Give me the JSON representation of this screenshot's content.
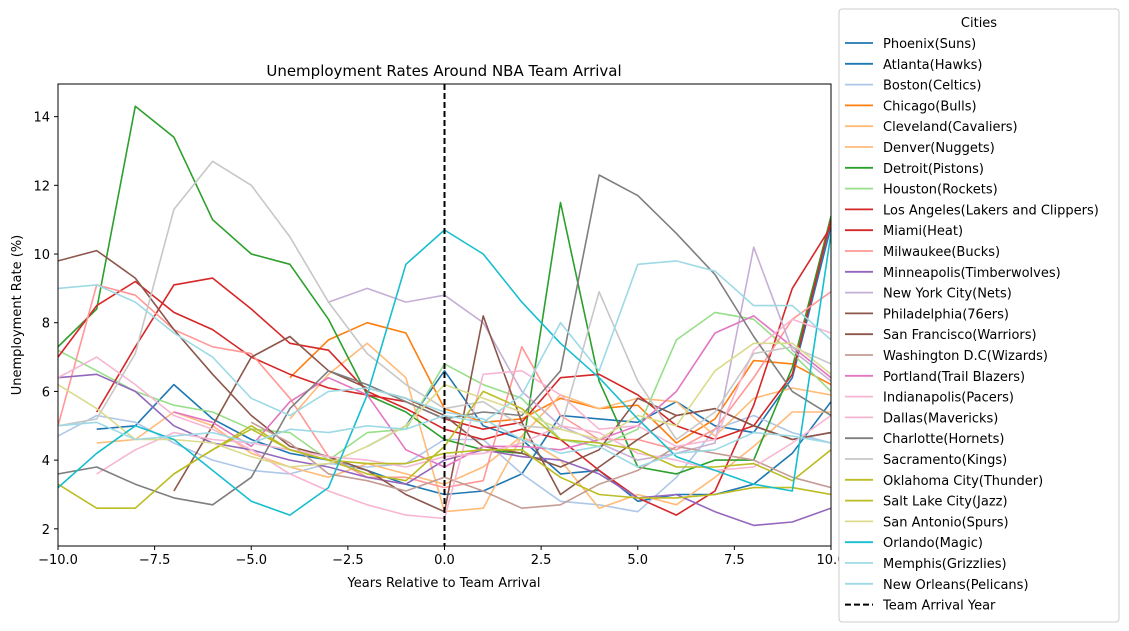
{
  "chart_data": {
    "type": "line",
    "title": "Unemployment Rates Around NBA Team Arrival",
    "xlabel": "Years Relative to Team Arrival",
    "ylabel": "Unemployment Rate (%)",
    "xlim": [
      -10,
      10
    ],
    "ylim": [
      1.5,
      14.95
    ],
    "xticks": [
      -10.0,
      -7.5,
      -5.0,
      -2.5,
      0.0,
      2.5,
      5.0,
      7.5,
      10.0
    ],
    "xtick_labels": [
      "−10.0",
      "−7.5",
      "−5.0",
      "−2.5",
      "0.0",
      "2.5",
      "5.0",
      "7.5",
      "10.0"
    ],
    "yticks": [
      2,
      4,
      6,
      8,
      10,
      12,
      14
    ],
    "ytick_labels": [
      "2",
      "4",
      "6",
      "8",
      "10",
      "12",
      "14"
    ],
    "grid": false,
    "legend": {
      "title": "Cities",
      "placement": "outside-right"
    },
    "reference_line": {
      "x": 0,
      "name": "Team Arrival Year",
      "color": "#000000",
      "style": "dashed"
    },
    "series": [
      {
        "name": "Phoenix(Suns)",
        "color": "#1f77b4",
        "x": [
          -9,
          -8,
          -7,
          -6,
          -5,
          -4,
          -3,
          -2,
          -1,
          0,
          1,
          2,
          3,
          4,
          5,
          6,
          7,
          8,
          9,
          10
        ],
        "y": [
          4.9,
          5.0,
          6.2,
          5.2,
          4.6,
          4.2,
          4.0,
          3.7,
          3.3,
          3.0,
          3.1,
          3.6,
          5.3,
          5.2,
          5.1,
          5.7,
          5.0,
          4.8,
          6.4,
          10.8
        ]
      },
      {
        "name": "Atlanta(Hawks)",
        "color": "#1f77b4",
        "x": [
          -2,
          -1,
          0,
          1,
          2,
          3,
          4,
          5,
          6,
          7,
          8,
          9,
          10
        ],
        "y": [
          4.4,
          5.0,
          6.6,
          5.0,
          4.6,
          3.6,
          3.7,
          2.8,
          3.0,
          3.0,
          3.3,
          4.2,
          5.7
        ]
      },
      {
        "name": "Boston(Celtics)",
        "color": "#aec7e8",
        "x": [
          -10,
          -9,
          -8,
          -7,
          -6,
          -5,
          -4,
          -3,
          -2,
          -1,
          0,
          1,
          2,
          3,
          4,
          5,
          6,
          7,
          8,
          9,
          10
        ],
        "y": [
          4.7,
          5.3,
          5.1,
          4.5,
          4.0,
          3.7,
          3.6,
          3.9,
          3.8,
          3.9,
          4.6,
          4.6,
          3.6,
          2.8,
          2.7,
          2.5,
          3.5,
          4.9,
          5.3,
          4.8,
          4.5
        ]
      },
      {
        "name": "Chicago(Bulls)",
        "color": "#ff7f0e",
        "x": [
          -4,
          -3,
          -2,
          -1,
          0,
          1,
          2,
          3,
          4,
          5,
          6,
          7,
          8,
          9,
          10
        ],
        "y": [
          6.4,
          7.5,
          8.0,
          7.7,
          5.5,
          5.1,
          5.2,
          5.8,
          5.5,
          5.6,
          4.5,
          5.2,
          6.9,
          6.8,
          6.2
        ]
      },
      {
        "name": "Cleveland(Cavaliers)",
        "color": "#ffbb78",
        "x": [
          -9,
          -8,
          -7,
          -6,
          -5,
          -4,
          -3,
          -2,
          -1,
          0,
          1,
          2,
          3,
          4,
          5,
          6,
          7,
          8,
          9,
          10
        ],
        "y": [
          4.5,
          4.6,
          5.4,
          5.0,
          4.2,
          3.8,
          3.5,
          3.9,
          3.6,
          3.3,
          3.8,
          4.7,
          5.9,
          5.5,
          5.8,
          5.7,
          4.7,
          5.8,
          6.1,
          5.9
        ]
      },
      {
        "name": "Denver(Nuggets)",
        "color": "#ffbb78",
        "x": [
          -4,
          -3,
          -2,
          -1,
          0,
          1,
          2,
          3,
          4,
          5,
          6,
          7,
          8,
          9,
          10
        ],
        "y": [
          5.2,
          6.5,
          7.4,
          6.4,
          2.5,
          2.6,
          4.7,
          4.0,
          2.6,
          3.0,
          2.7,
          3.5,
          4.4,
          5.4,
          5.4
        ]
      },
      {
        "name": "Detroit(Pistons)",
        "color": "#2ca02c",
        "x": [
          -10,
          -9,
          -8,
          -7,
          -6,
          -5,
          -4,
          -3,
          -2,
          -1,
          0,
          1,
          2,
          3,
          4,
          5,
          6,
          7,
          8,
          9,
          10
        ],
        "y": [
          7.3,
          8.4,
          14.3,
          13.4,
          11.0,
          10.0,
          9.7,
          8.1,
          5.9,
          5.4,
          4.6,
          4.3,
          4.2,
          11.5,
          6.3,
          3.8,
          3.6,
          4.0,
          4.0,
          6.7,
          11.1
        ]
      },
      {
        "name": "Houston(Rockets)",
        "color": "#98df8a",
        "x": [
          -10,
          -9,
          -8,
          -7,
          -6,
          -5,
          -4,
          -3,
          -2,
          -1,
          0,
          1,
          2,
          3,
          4,
          5,
          6,
          7,
          8,
          9,
          10
        ],
        "y": [
          7.2,
          6.6,
          6.0,
          5.6,
          5.4,
          4.9,
          4.8,
          4.0,
          4.8,
          4.9,
          6.8,
          6.2,
          5.8,
          4.6,
          4.4,
          4.9,
          7.5,
          8.3,
          8.1,
          7.1,
          6.0
        ]
      },
      {
        "name": "Los Angeles(Lakers and Clippers)",
        "color": "#d62728",
        "x": [
          -10,
          -9,
          -8,
          -7,
          -6,
          -5,
          -4,
          -3,
          -2,
          -1,
          0,
          1,
          2,
          3,
          4,
          5,
          6,
          7,
          8,
          9,
          10
        ],
        "y": [
          7.0,
          8.5,
          9.2,
          8.3,
          7.8,
          7.0,
          6.5,
          6.1,
          5.9,
          5.7,
          5.2,
          4.9,
          5.1,
          6.4,
          6.5,
          5.9,
          5.0,
          4.6,
          5.0,
          6.5,
          11.0
        ]
      },
      {
        "name": "Miami(Heat)",
        "color": "#d62728",
        "x": [
          -9,
          -8,
          -7,
          -6,
          -5,
          -4,
          -3,
          -2,
          -1,
          0,
          1,
          2,
          3,
          4,
          5,
          6,
          7,
          8,
          9,
          10
        ],
        "y": [
          5.4,
          7.3,
          9.1,
          9.3,
          8.4,
          7.4,
          7.2,
          6.0,
          5.5,
          4.9,
          4.6,
          4.9,
          4.6,
          3.7,
          2.9,
          2.4,
          3.1,
          5.6,
          9.0,
          10.8
        ]
      },
      {
        "name": "Milwaukee(Bucks)",
        "color": "#ff9896",
        "x": [
          -10,
          -9,
          -8,
          -7,
          -6,
          -5,
          -4,
          -3,
          -2,
          -1,
          0,
          1,
          2,
          3,
          4,
          5,
          6,
          7,
          8,
          9,
          10
        ],
        "y": [
          5.0,
          9.1,
          8.8,
          7.8,
          7.3,
          7.1,
          5.8,
          4.1,
          3.5,
          3.5,
          3.2,
          3.4,
          7.3,
          5.3,
          4.6,
          4.6,
          4.3,
          4.9,
          6.4,
          8.1,
          8.9
        ]
      },
      {
        "name": "Minneapolis(Timberwolves)",
        "color": "#9467bd",
        "x": [
          -10,
          -9,
          -8,
          -7,
          -6,
          -5,
          -4,
          -3,
          -2,
          -1,
          0,
          1,
          2,
          3,
          4,
          5,
          6,
          7,
          8,
          9,
          10
        ],
        "y": [
          6.4,
          6.5,
          6.0,
          5.0,
          4.5,
          4.3,
          4.0,
          3.8,
          3.5,
          3.3,
          4.0,
          4.3,
          4.1,
          4.0,
          3.6,
          2.9,
          3.0,
          2.5,
          2.1,
          2.2,
          2.6
        ]
      },
      {
        "name": "New York City(Nets)",
        "color": "#c5b0d5",
        "x": [
          -3,
          -2,
          -1,
          0,
          1,
          2,
          3,
          4,
          5,
          6,
          7,
          8,
          9,
          10
        ],
        "y": [
          8.6,
          9.0,
          8.6,
          8.8,
          8.0,
          6.0,
          5.0,
          4.5,
          4.0,
          4.2,
          4.5,
          10.2,
          7.2,
          6.3
        ]
      },
      {
        "name": "Philadelphia(76ers)",
        "color": "#8c564b",
        "x": [
          -10,
          -9,
          -8,
          -7,
          -6,
          -5,
          -4,
          -3,
          -2,
          -1,
          0,
          1,
          2,
          3,
          4,
          5,
          6,
          7,
          8,
          9,
          10
        ],
        "y": [
          9.8,
          10.1,
          9.3,
          7.8,
          6.5,
          5.3,
          4.4,
          4.1,
          3.7,
          3.0,
          2.5,
          8.2,
          5.1,
          3.0,
          3.8,
          4.6,
          5.3,
          5.5,
          5.0,
          4.6,
          4.8
        ]
      },
      {
        "name": "San Francisco(Warriors)",
        "color": "#8c564b",
        "x": [
          -7,
          -6,
          -5,
          -4,
          -3,
          -2,
          -1,
          0,
          1,
          2,
          3,
          4,
          5,
          6,
          7,
          8,
          9,
          10
        ],
        "y": [
          3.1,
          5.0,
          7.0,
          7.6,
          6.6,
          6.1,
          5.8,
          5.3,
          4.4,
          4.2,
          3.8,
          4.3,
          5.8,
          5.3,
          5.5,
          5.0,
          4.6,
          4.8
        ]
      },
      {
        "name": "Washington D.C(Wizards)",
        "color": "#c49c94",
        "x": [
          -5,
          -4,
          -3,
          -2,
          -1,
          0,
          1,
          2,
          3,
          4,
          5,
          6,
          7,
          8,
          9,
          10
        ],
        "y": [
          5.1,
          4.5,
          3.6,
          3.4,
          3.1,
          3.5,
          3.1,
          2.6,
          2.7,
          3.3,
          3.7,
          4.4,
          4.2,
          4.0,
          3.5,
          3.2
        ]
      },
      {
        "name": "Portland(Trail Blazers)",
        "color": "#e377c2",
        "x": [
          -7,
          -6,
          -5,
          -4,
          -3,
          -2,
          -1,
          0,
          1,
          2,
          3,
          4,
          5,
          6,
          7,
          8,
          9,
          10
        ],
        "y": [
          5.4,
          5.1,
          4.4,
          5.7,
          6.4,
          5.9,
          4.3,
          3.8,
          4.4,
          4.4,
          4.3,
          4.6,
          5.0,
          6.0,
          7.7,
          8.2,
          7.3,
          6.4
        ]
      },
      {
        "name": "Indianapolis(Pacers)",
        "color": "#f7b6d2",
        "x": [
          -10,
          -9,
          -8,
          -7,
          -6,
          -5,
          -4,
          -3,
          -2,
          -1,
          0,
          1,
          2,
          3,
          4,
          5,
          6,
          7,
          8,
          9,
          10
        ],
        "y": [
          6.4,
          7.0,
          6.2,
          5.3,
          4.9,
          4.3,
          3.6,
          3.1,
          2.7,
          2.4,
          2.3,
          6.5,
          6.6,
          5.9,
          4.9,
          5.0,
          4.4,
          4.6,
          7.2,
          8.1,
          7.7
        ]
      },
      {
        "name": "Dallas(Mavericks)",
        "color": "#f7b6d2",
        "x": [
          -9,
          -8,
          -7,
          -6,
          -5,
          -4,
          -3,
          -2,
          -1,
          0,
          1,
          2,
          3,
          4,
          5,
          6,
          7,
          8,
          9,
          10
        ],
        "y": [
          3.6,
          4.3,
          4.8,
          4.6,
          4.5,
          4.3,
          4.1,
          4.0,
          3.8,
          4.1,
          4.2,
          4.5,
          5.0,
          4.8,
          4.2,
          4.0,
          3.7,
          3.8,
          4.5,
          5.3
        ]
      },
      {
        "name": "Charlotte(Hornets)",
        "color": "#7f7f7f",
        "x": [
          -10,
          -9,
          -8,
          -7,
          -6,
          -5,
          -4,
          -3,
          -2,
          -1,
          0,
          1,
          2,
          3,
          4,
          5,
          6,
          7,
          8,
          9,
          10
        ],
        "y": [
          3.6,
          3.8,
          3.3,
          2.9,
          2.7,
          3.5,
          5.5,
          6.6,
          6.2,
          5.7,
          5.2,
          5.4,
          5.3,
          6.6,
          12.3,
          11.7,
          10.6,
          9.4,
          7.6,
          6.0,
          5.3
        ]
      },
      {
        "name": "Sacramento(Kings)",
        "color": "#c7c7c7",
        "x": [
          -10,
          -9,
          -8,
          -7,
          -6,
          -5,
          -4,
          -3,
          -2,
          -1,
          0,
          1,
          2,
          3,
          4,
          5,
          6,
          7,
          8,
          9,
          10
        ],
        "y": [
          5.0,
          5.2,
          7.1,
          11.3,
          12.7,
          12.0,
          10.5,
          8.6,
          7.1,
          6.2,
          5.5,
          5.7,
          5.0,
          4.9,
          8.9,
          6.3,
          4.6,
          5.4,
          7.1,
          7.3,
          6.8
        ]
      },
      {
        "name": "Oklahoma City(Thunder)",
        "color": "#bcbd22",
        "x": [
          -7,
          -6,
          -5,
          -4,
          -3,
          -2,
          -1,
          0,
          1,
          2,
          3,
          4,
          5,
          6,
          7,
          8,
          9,
          10
        ],
        "y": [
          3.6,
          4.3,
          5.0,
          4.3,
          4.0,
          3.9,
          3.9,
          4.2,
          4.3,
          4.3,
          3.5,
          3.0,
          2.9,
          2.9,
          3.0,
          3.2,
          3.2,
          3.0
        ]
      },
      {
        "name": "Salt Lake City(Jazz)",
        "color": "#bcbd22",
        "x": [
          -10,
          -9,
          -8,
          -7,
          -6,
          -5,
          -4,
          -3,
          -2,
          -1,
          0,
          1,
          2,
          3,
          4,
          5,
          6,
          7,
          8,
          9,
          10
        ],
        "y": [
          3.3,
          2.6,
          2.6,
          3.6,
          4.3,
          4.9,
          4.3,
          4.0,
          3.6,
          3.4,
          4.4,
          6.0,
          5.5,
          4.6,
          4.5,
          4.3,
          3.8,
          3.8,
          3.9,
          3.4,
          4.3
        ]
      },
      {
        "name": "San Antonio(Spurs)",
        "color": "#dbdb8d",
        "x": [
          -10,
          -9,
          -8,
          -7,
          -6,
          -5,
          -4,
          -3,
          -2,
          -1,
          0,
          1,
          2,
          3,
          4,
          5,
          6,
          7,
          8,
          9,
          10
        ],
        "y": [
          6.2,
          5.5,
          4.6,
          4.6,
          4.5,
          4.1,
          3.8,
          3.9,
          4.4,
          5.0,
          6.2,
          5.8,
          5.4,
          4.9,
          4.6,
          5.3,
          5.0,
          6.6,
          7.4,
          7.4,
          6.5
        ]
      },
      {
        "name": "Orlando(Magic)",
        "color": "#17becf",
        "x": [
          -10,
          -9,
          -8,
          -7,
          -6,
          -5,
          -4,
          -3,
          -2,
          -1,
          0,
          1,
          2,
          3,
          4,
          5,
          6,
          7,
          8,
          9,
          10
        ],
        "y": [
          3.2,
          4.2,
          5.0,
          4.6,
          3.7,
          2.8,
          2.4,
          3.2,
          5.9,
          9.7,
          10.7,
          10.0,
          8.6,
          7.4,
          6.4,
          5.2,
          4.1,
          3.7,
          3.3,
          3.1,
          10.6
        ]
      },
      {
        "name": "Memphis(Grizzlies)",
        "color": "#9edae5",
        "x": [
          -10,
          -9,
          -8,
          -7,
          -6,
          -5,
          -4,
          -3,
          -2,
          -1,
          0,
          1,
          2,
          3,
          4,
          5,
          6,
          7,
          8,
          9,
          10
        ],
        "y": [
          5.0,
          5.1,
          4.6,
          4.7,
          4.8,
          4.5,
          4.9,
          4.8,
          5.0,
          4.9,
          5.3,
          5.1,
          5.9,
          8.0,
          6.6,
          9.7,
          9.8,
          9.5,
          8.5,
          8.5,
          7.5
        ]
      },
      {
        "name": "New Orleans(Pelicans)",
        "color": "#9edae5",
        "x": [
          -10,
          -9,
          -8,
          -7,
          -6,
          -5,
          -4,
          -3,
          -2,
          -1,
          0,
          1,
          2,
          3,
          4,
          5,
          6,
          7,
          8,
          9,
          10
        ],
        "y": [
          9.0,
          9.1,
          8.6,
          7.7,
          7.0,
          5.8,
          5.3,
          6.0,
          6.1,
          5.8,
          5.4,
          5.2,
          4.6,
          4.2,
          4.4,
          3.8,
          4.2,
          4.3,
          4.8,
          4.7,
          4.5
        ]
      }
    ]
  }
}
